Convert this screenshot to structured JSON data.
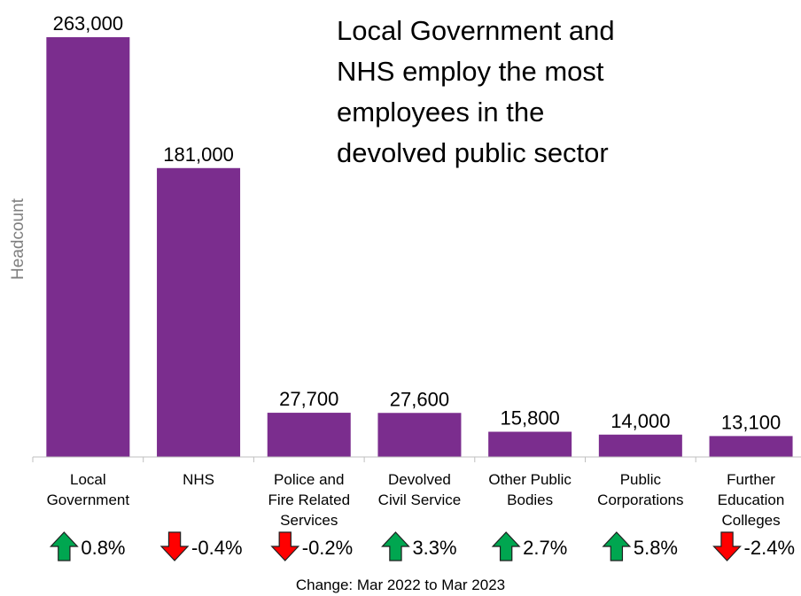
{
  "chart_data": {
    "type": "bar",
    "title_lines": [
      "Local Government and",
      "NHS employ the most",
      "employees in the",
      "devolved public sector"
    ],
    "ylabel": "Headcount",
    "ylim": [
      0,
      263000
    ],
    "bar_color": "#7b2d8e",
    "categories": [
      [
        "Local",
        "Government"
      ],
      [
        "NHS"
      ],
      [
        "Police and",
        "Fire Related",
        "Services"
      ],
      [
        "Devolved",
        "Civil Service"
      ],
      [
        "Other Public",
        "Bodies"
      ],
      [
        "Public",
        "Corporations"
      ],
      [
        "Further",
        "Education",
        "Colleges"
      ]
    ],
    "values": [
      263000,
      181000,
      27700,
      27600,
      15800,
      14000,
      13100
    ],
    "value_labels": [
      "263,000",
      "181,000",
      "27,700",
      "27,600",
      "15,800",
      "14,000",
      "13,100"
    ],
    "changes": [
      {
        "label": "0.8%",
        "direction": "up"
      },
      {
        "label": "-0.4%",
        "direction": "down"
      },
      {
        "label": "-0.2%",
        "direction": "down"
      },
      {
        "label": "3.3%",
        "direction": "up"
      },
      {
        "label": "2.7%",
        "direction": "up"
      },
      {
        "label": "5.8%",
        "direction": "up"
      },
      {
        "label": "-2.4%",
        "direction": "down"
      }
    ],
    "change_note": "Change:  Mar 2022 to Mar 2023",
    "up_color": "#00a650",
    "down_color": "#ff0000"
  }
}
